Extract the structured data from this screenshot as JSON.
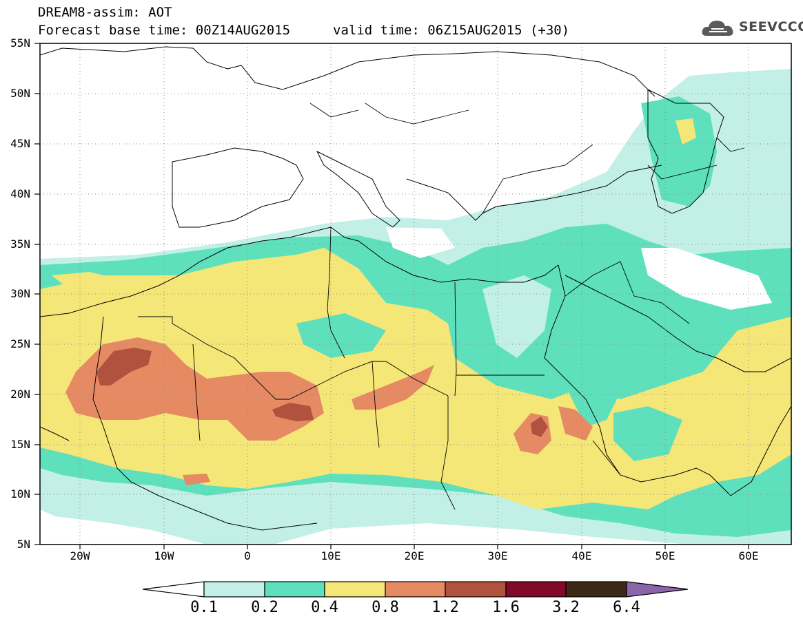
{
  "header": {
    "line1": "DREAM8-assim: AOT",
    "base_time": "Forecast base time: 00Z14AUG2015",
    "valid_time": "valid time: 06Z15AUG2015 (+30)"
  },
  "logo": {
    "text": "SEEVCCC",
    "icon": "cloud-icon"
  },
  "axes": {
    "y_labels": [
      "55N",
      "50N",
      "45N",
      "40N",
      "35N",
      "30N",
      "25N",
      "20N",
      "15N",
      "10N",
      "5N"
    ],
    "x_labels": [
      "20W",
      "10W",
      "0",
      "10E",
      "20E",
      "30E",
      "40E",
      "50E",
      "60E"
    ],
    "lat_range": [
      5,
      55
    ],
    "lon_range": [
      -25,
      65
    ]
  },
  "colorbar": {
    "labels": [
      "0.1",
      "0.2",
      "0.4",
      "0.8",
      "1.2",
      "1.6",
      "3.2",
      "6.4"
    ],
    "colors": [
      "#ffffff",
      "#c2f0e6",
      "#5ee0bd",
      "#f5e678",
      "#e68a64",
      "#b0523e",
      "#820a28",
      "#3c2814",
      "#8c64aa"
    ]
  }
}
